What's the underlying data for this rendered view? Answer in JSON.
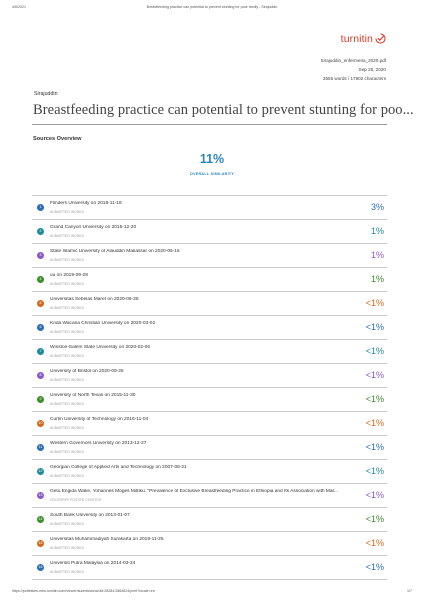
{
  "print_header": {
    "date": "4/6/2021",
    "title": "Breastfeeding practice can potential to prevent stunting for poor family - Sirajuddin"
  },
  "logo": {
    "text": "turnitin",
    "icon": "turnitin-mark-icon",
    "color": "#d9392b"
  },
  "meta": {
    "filename": "Sirajuddin_enfermeria_2020.pdf",
    "date": "Sep 25, 2020",
    "counts": "3555 words / 17802 characters"
  },
  "author": "Sirajuddin",
  "doc_title": "Breastfeeding practice can potential to prevent stunting for poo...",
  "sources_overview": {
    "heading": "Sources Overview",
    "similarity": "11%",
    "similarity_label": "OVERALL SIMILARITY",
    "accent": "#2d86c4"
  },
  "sources": [
    {
      "num": "1",
      "name": "Flinders University on 2018-11-18",
      "type": "SUBMITTED WORKS",
      "pct": "3%",
      "color": "#2d6cb5"
    },
    {
      "num": "2",
      "name": "Grand Canyon University on 2015-12-20",
      "type": "SUBMITTED WORKS",
      "pct": "1%",
      "color": "#1f8a9c"
    },
    {
      "num": "3",
      "name": "State Islamic University of Alauddin Makassar on 2020-05-15",
      "type": "SUBMITTED WORKS",
      "pct": "1%",
      "color": "#8b59c7"
    },
    {
      "num": "4",
      "name": "uu on 2019-09-28",
      "type": "SUBMITTED WORKS",
      "pct": "1%",
      "color": "#3b8e2a"
    },
    {
      "num": "5",
      "name": "Universitas Sebelas Maret on 2020-06-26",
      "type": "SUBMITTED WORKS",
      "pct": "<1%",
      "color": "#d2691e"
    },
    {
      "num": "6",
      "name": "Krida Wacana Christian University on 2020-03-02",
      "type": "SUBMITTED WORKS",
      "pct": "<1%",
      "color": "#2d6cb5"
    },
    {
      "num": "7",
      "name": "Winston-Salem State University on 2020-02-06",
      "type": "SUBMITTED WORKS",
      "pct": "<1%",
      "color": "#1f8a9c"
    },
    {
      "num": "8",
      "name": "University of Bristol on 2020-09-26",
      "type": "SUBMITTED WORKS",
      "pct": "<1%",
      "color": "#8b59c7"
    },
    {
      "num": "9",
      "name": "University of North Texas on 2015-11-30",
      "type": "SUBMITTED WORKS",
      "pct": "<1%",
      "color": "#3b8e2a"
    },
    {
      "num": "10",
      "name": "Curtin University of Technology on 2016-11-04",
      "type": "SUBMITTED WORKS",
      "pct": "<1%",
      "color": "#d2691e"
    },
    {
      "num": "11",
      "name": "Western Governors University on 2013-12-27",
      "type": "SUBMITTED WORKS",
      "pct": "<1%",
      "color": "#2d6cb5"
    },
    {
      "num": "12",
      "name": "Georgian College of Applied Arts and Technology on 2007-06-21",
      "type": "SUBMITTED WORKS",
      "pct": "<1%",
      "color": "#1f8a9c"
    },
    {
      "num": "13",
      "name": "Getu Engida Wake, Yohannes Moges Mittiku. \"Prevalence of Exclusive Breastfeeding Practice in Ethiopia and Its Association with Mat...",
      "type": "CROSSREF POSTED CONTENT",
      "pct": "<1%",
      "color": "#8b59c7"
    },
    {
      "num": "14",
      "name": "South Bank University on 2013-01-07",
      "type": "SUBMITTED WORKS",
      "pct": "<1%",
      "color": "#3b8e2a"
    },
    {
      "num": "15",
      "name": "Universitas Muhammadiyah Surakarta on 2019-11-25",
      "type": "SUBMITTED WORKS",
      "pct": "<1%",
      "color": "#d2691e"
    },
    {
      "num": "16",
      "name": "Universiti Putra Malaysia on 2014-03-24",
      "type": "SUBMITTED WORKS",
      "pct": "<1%",
      "color": "#2d6cb5"
    }
  ],
  "print_footer": {
    "url": "https://poltekkes-mks.turnitin.com/viewer/submissions/oid:28284:2864624/print?locale=en",
    "page": "1/7"
  }
}
